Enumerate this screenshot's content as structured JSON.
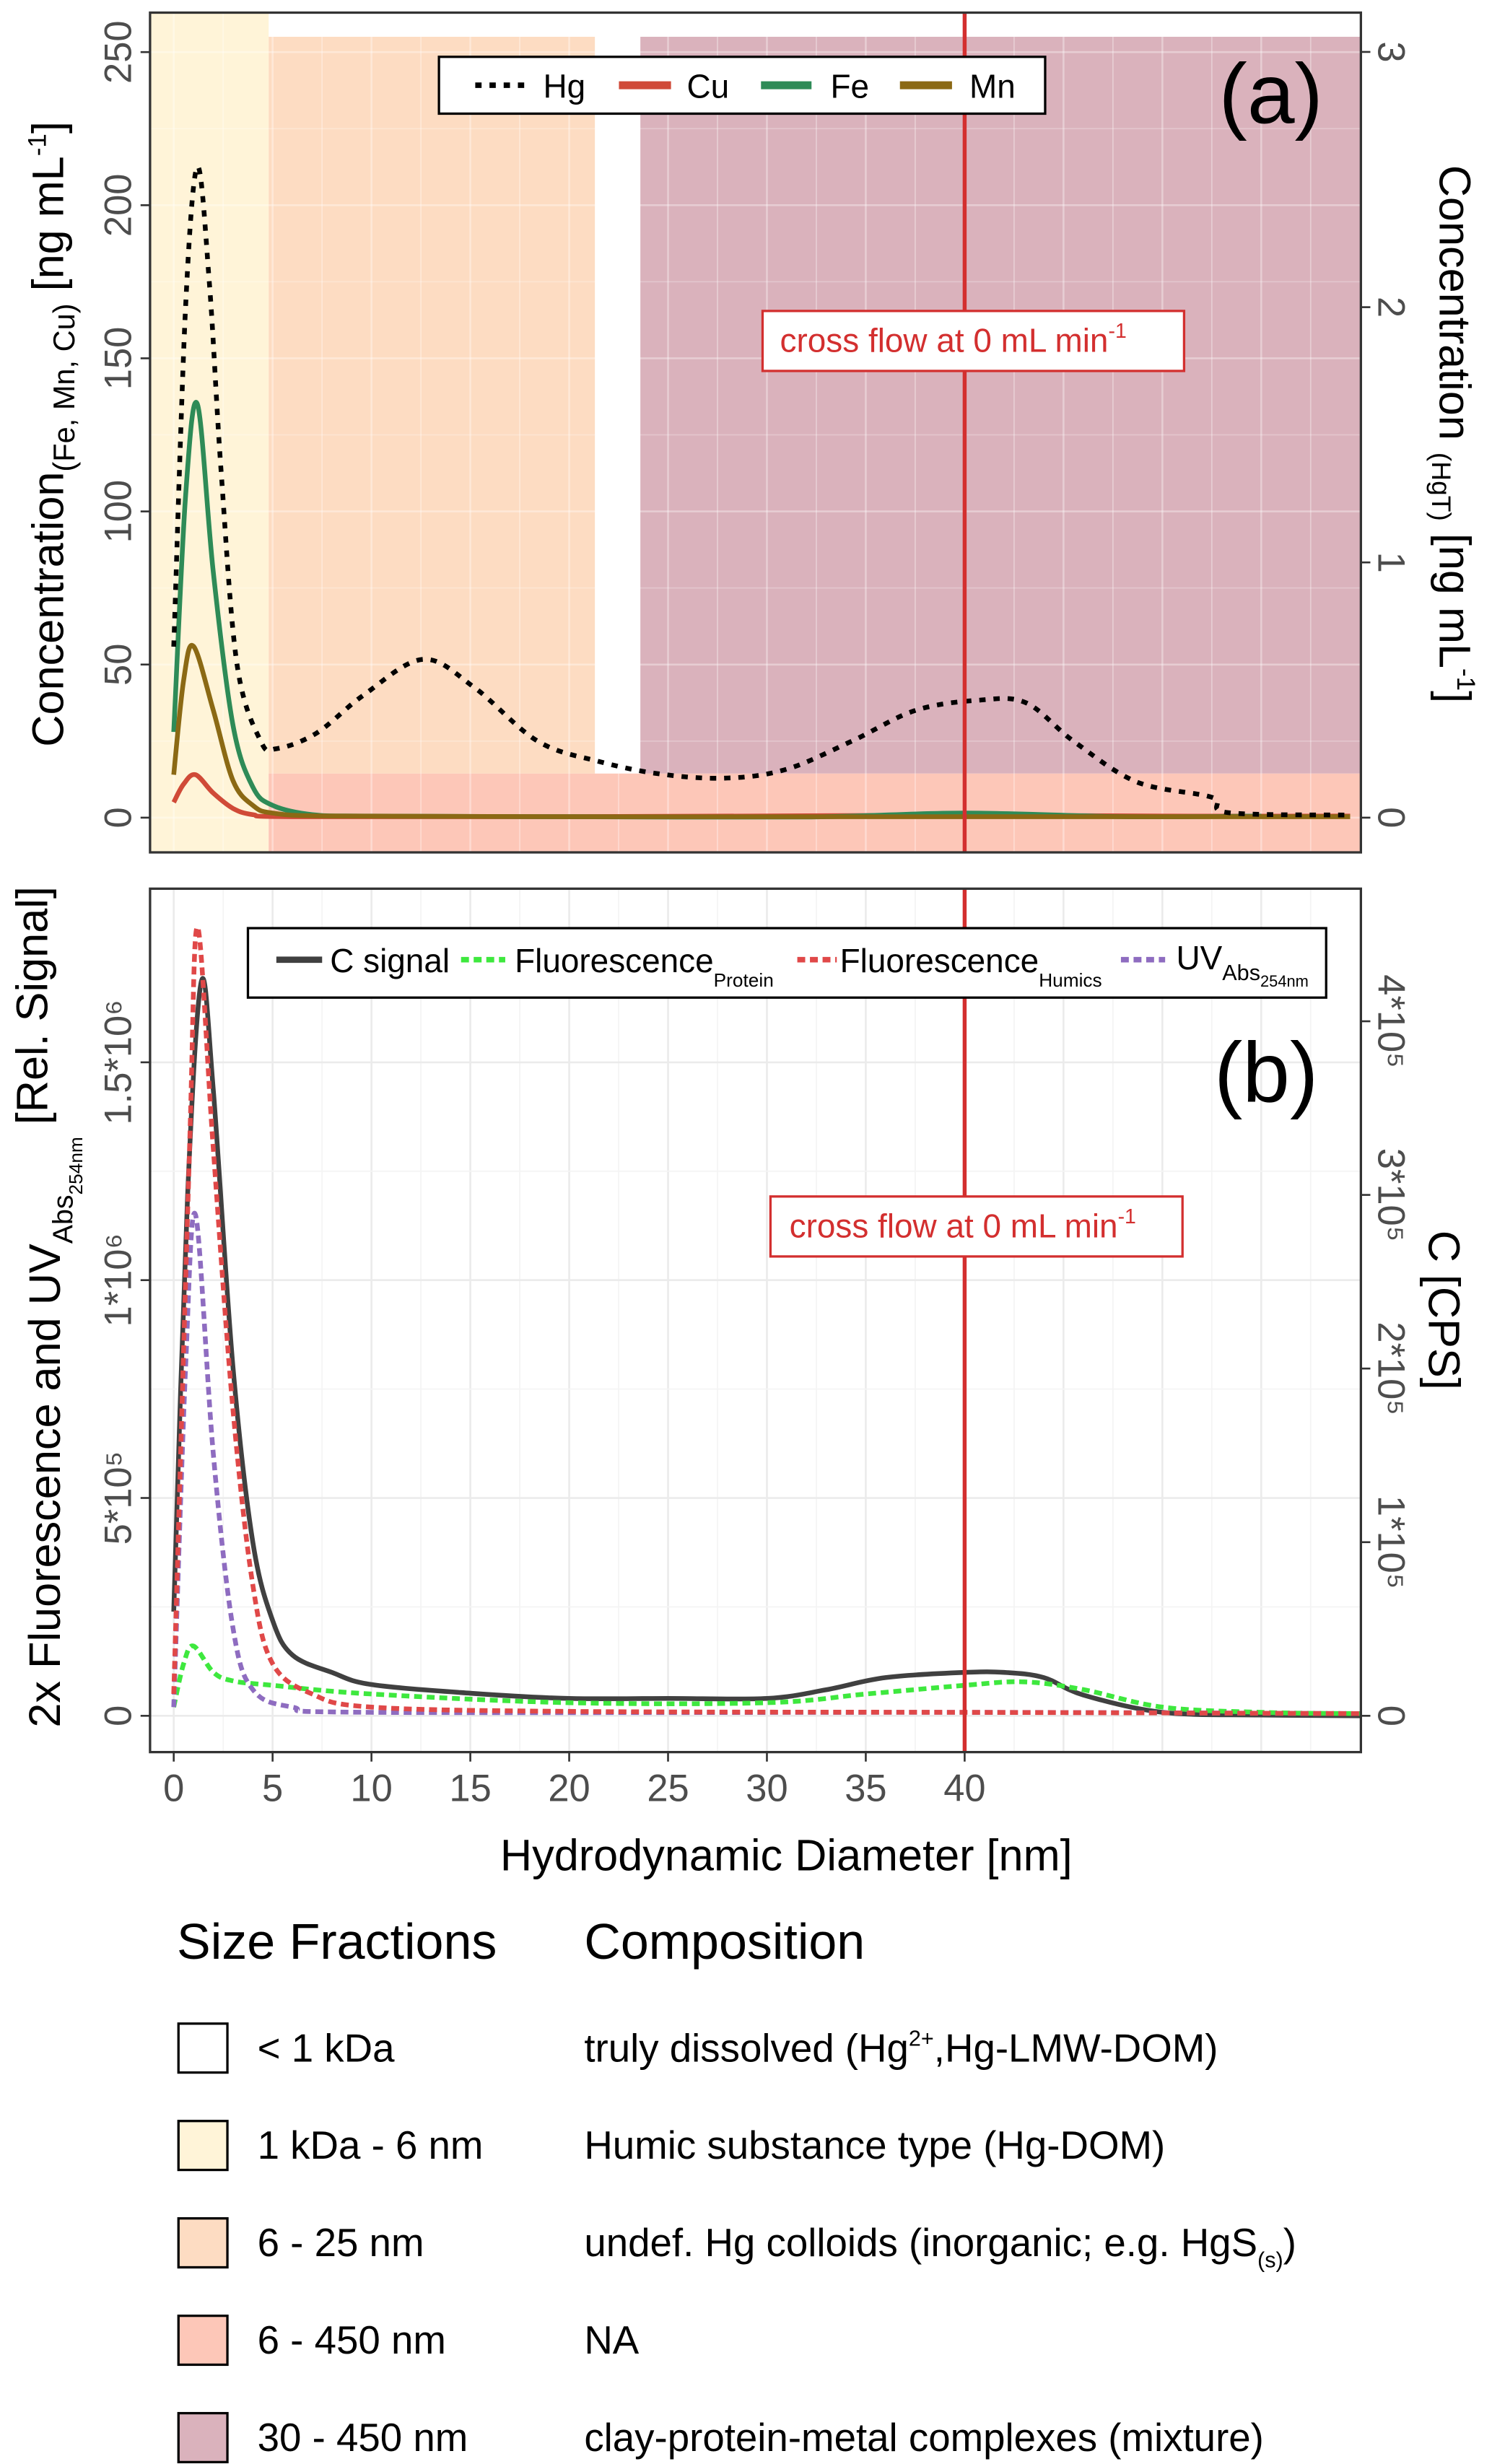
{
  "chart_data": [
    {
      "panel_label": "(a)",
      "type": "line",
      "xlim": [
        -1.2,
        60
      ],
      "x_ticks": [],
      "ylim_left": [
        -10,
        255
      ],
      "ylim_right": [
        0,
        3.1
      ],
      "y_ticks_left": [
        "0",
        "50",
        "100",
        "150",
        "200",
        "250"
      ],
      "y_tick_values_left": [
        0,
        50,
        100,
        150,
        200,
        250
      ],
      "y_ticks_right": [
        "0",
        "1",
        "2",
        "3"
      ],
      "y_tick_values_right": [
        0,
        1,
        2,
        3
      ],
      "ylabel_left": {
        "main": "Concentration",
        "sub": "(Fe, Mn, Cu)",
        "unit": " [ng mL",
        "sup": "-1",
        "close": "]"
      },
      "ylabel_right": {
        "main": "Concentration ",
        "sub": "(HgT)",
        "unit": " [ng mL",
        "sup": "-1",
        "close": "]"
      },
      "legend": {
        "placement": "top-center"
      },
      "annotation": {
        "text": "cross flow at 0 mL min",
        "sup": "-1",
        "x": 40
      },
      "vline_x": 40,
      "regions": [
        {
          "name": "1 kDa - 6 nm",
          "x": [
            -1.2,
            4.8
          ],
          "y": "full",
          "color": "#fff4d8"
        },
        {
          "name": "6 - 25 nm",
          "x": [
            4.8,
            21.3
          ],
          "y": [
            14.4,
            255
          ],
          "color": "#fddcc2"
        },
        {
          "name": "30 - 450 nm",
          "x": [
            23.6,
            60
          ],
          "y": [
            14.4,
            255
          ],
          "color": "#dab2bc"
        },
        {
          "name": "6 - 450 nm",
          "x": [
            4.8,
            60
          ],
          "y": [
            -12,
            14.4
          ],
          "color": "#fdc7b8"
        }
      ],
      "series": [
        {
          "name": "Hg",
          "axis": "right",
          "color": "#000000",
          "style": "dotted",
          "x": [
            0,
            0.6,
            1.2,
            1.8,
            2.4,
            3.2,
            4.4,
            5.2,
            7.2,
            9.6,
            12.6,
            15.2,
            18.4,
            21.5,
            24.7,
            28,
            31,
            34.3,
            37.5,
            40.7,
            43.1,
            45.5,
            48.7,
            52.5,
            53.3,
            59.5
          ],
          "y": [
            0.67,
            2.0,
            2.55,
            2.1,
            1.35,
            0.6,
            0.3,
            0.27,
            0.33,
            0.48,
            0.62,
            0.51,
            0.3,
            0.22,
            0.17,
            0.155,
            0.19,
            0.3,
            0.42,
            0.46,
            0.45,
            0.3,
            0.14,
            0.08,
            0.02,
            0.01
          ]
        },
        {
          "name": "Cu",
          "axis": "left",
          "color": "#d04a38",
          "style": "solid",
          "x": [
            0,
            0.5,
            1.1,
            2,
            3,
            4,
            6,
            20,
            40,
            50,
            59.5
          ],
          "y": [
            5,
            11,
            14,
            8,
            3,
            1,
            0.3,
            0.3,
            0.8,
            0.5,
            0.5
          ]
        },
        {
          "name": "Fe",
          "axis": "left",
          "color": "#2e8b57",
          "style": "solid",
          "x": [
            0,
            0.6,
            1.2,
            2,
            3,
            4,
            5,
            7,
            10,
            20,
            32,
            40,
            48,
            55
          ],
          "y": [
            28,
            105,
            135,
            80,
            30,
            10,
            4,
            1,
            0.5,
            0.3,
            0.2,
            1.5,
            0.3,
            0.5
          ]
        },
        {
          "name": "Mn",
          "axis": "left",
          "color": "#8b6914",
          "style": "solid",
          "x": [
            0,
            0.5,
            1,
            2,
            3,
            4,
            5,
            8,
            20,
            40,
            59.5
          ],
          "y": [
            14,
            45,
            56,
            35,
            12,
            4,
            1.5,
            0.5,
            0.3,
            0.3,
            0.3
          ]
        }
      ]
    },
    {
      "panel_label": "(b)",
      "type": "line",
      "xlim": [
        -1.2,
        60
      ],
      "x_ticks": [
        "0",
        "5",
        "10",
        "15",
        "20",
        "25",
        "30",
        "35",
        "40"
      ],
      "x_tick_values": [
        0,
        5,
        10,
        15,
        20,
        25,
        30,
        35,
        40
      ],
      "xlabel": "Hydrodynamic Diameter [nm]",
      "ylim_left": [
        -80000,
        1900000
      ],
      "ylim_right": [
        0,
        440000
      ],
      "y_ticks_left": [
        "0",
        "5*10⁵",
        "1*10⁶",
        "1.5*10⁶"
      ],
      "y_tick_values_left": [
        0,
        500000,
        1000000,
        1500000
      ],
      "y_ticks_right": [
        "0",
        "1*10⁵",
        "2*10⁵",
        "3*10⁵",
        "4*10⁵"
      ],
      "y_tick_values_right": [
        0,
        100000,
        200000,
        300000,
        400000
      ],
      "ylabel_left": {
        "main": "2x Fluorescence and UV",
        "sub": "Abs",
        "subsub": "254nm",
        "close": " [Rel. Signal]"
      },
      "ylabel_right": "C [CPS]",
      "legend": {
        "placement": "top"
      },
      "annotation": {
        "text": "cross flow at 0 mL min",
        "sup": "-1",
        "x": 40
      },
      "vline_x": 40,
      "series": [
        {
          "name": "C signal",
          "axis": "right",
          "color": "#404040",
          "style": "solid",
          "x": [
            0,
            0.7,
            1.4,
            2,
            3,
            4,
            5,
            6,
            8,
            10,
            15,
            20,
            25,
            30,
            33,
            36,
            40,
            42,
            44,
            46,
            50,
            55,
            60
          ],
          "y": [
            60000,
            300000,
            423000,
            360000,
            200000,
            100000,
            55000,
            35000,
            25000,
            18000,
            13000,
            10000,
            10000,
            10000,
            15000,
            22000,
            25000,
            25000,
            22000,
            12000,
            2000,
            500,
            0
          ]
        },
        {
          "name": "Fluorescence",
          "sub": "Protein",
          "axis": "left",
          "color": "#3ee83e",
          "style": "dashed",
          "x": [
            0,
            0.5,
            1,
            2,
            3,
            5,
            10,
            20,
            30,
            35,
            40,
            43,
            46,
            50,
            55,
            60
          ],
          "y": [
            20000,
            120000,
            160000,
            100000,
            80000,
            70000,
            50000,
            30000,
            30000,
            50000,
            70000,
            78000,
            60000,
            20000,
            8000,
            5000
          ]
        },
        {
          "name": "Fluorescence",
          "sub": "Humics",
          "axis": "left",
          "color": "#e04848",
          "style": "dashed",
          "x": [
            0,
            0.8,
            1.2,
            2,
            3,
            4,
            5,
            7,
            10,
            20,
            40,
            60
          ],
          "y": [
            50000,
            1300000,
            1810000,
            1300000,
            700000,
            300000,
            120000,
            50000,
            20000,
            10000,
            8000,
            5000
          ]
        },
        {
          "name": "UV",
          "sub": "Abs",
          "subsub": "254nm",
          "axis": "left",
          "color": "#8e6cc0",
          "style": "dashed",
          "x": [
            0,
            0.6,
            1.1,
            2,
            3,
            4,
            6,
            10,
            40,
            60
          ],
          "y": [
            20000,
            800000,
            1150000,
            600000,
            200000,
            60000,
            20000,
            8000,
            8000,
            5000
          ]
        }
      ]
    }
  ],
  "size_legend": {
    "header_fractions": "Size Fractions",
    "header_composition": "Composition",
    "rows": [
      {
        "fraction": "< 1 kDa",
        "color": "#ffffff",
        "comp": "truly dissolved (Hg",
        "comp_sup": "2+",
        "comp_rest": ",Hg-LMW-DOM)"
      },
      {
        "fraction": "1 kDa - 6 nm",
        "color": "#fff4d8",
        "comp": "Humic substance type (Hg-DOM)"
      },
      {
        "fraction": "6 - 25 nm",
        "color": "#fddcc2",
        "comp": "undef. Hg colloids (inorganic; e.g. HgS",
        "comp_sub": "(s)",
        "comp_rest": ")"
      },
      {
        "fraction": "6 - 450 nm",
        "color": "#fdc7b8",
        "comp": "NA"
      },
      {
        "fraction": "30 - 450 nm",
        "color": "#dab2bc",
        "comp": "clay-protein-metal complexes (mixture)"
      }
    ]
  },
  "colors": {
    "vline": "#d32f2f",
    "annotation": "#d32f2f",
    "frame": "#333333",
    "grid": "#ebebeb"
  }
}
